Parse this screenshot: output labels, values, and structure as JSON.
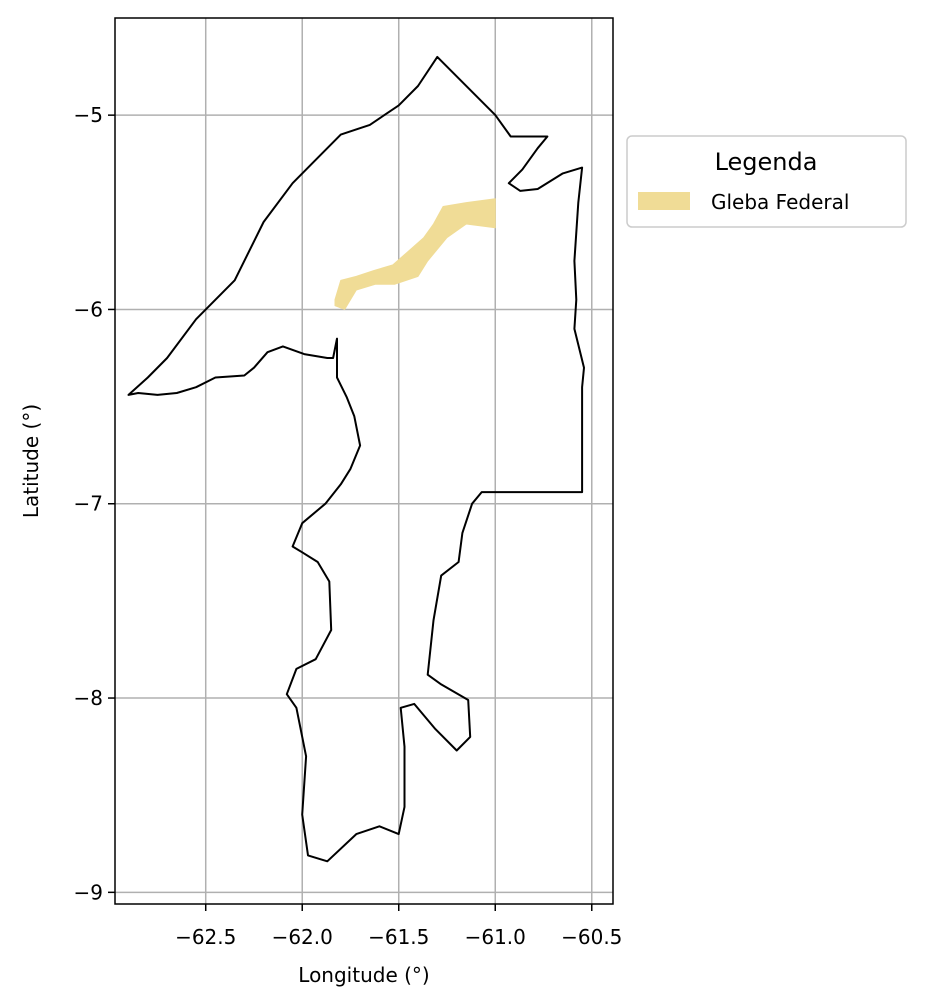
{
  "chart_data": {
    "type": "map",
    "title": "",
    "xlabel": "Longitude (°)",
    "ylabel": "Latitude (°)",
    "xlim": [
      -62.97,
      -60.39
    ],
    "ylim": [
      -9.06,
      -4.5
    ],
    "grid": true,
    "x_ticks": [
      {
        "value": -62.5,
        "label": "−62.5"
      },
      {
        "value": -62.0,
        "label": "−62.0"
      },
      {
        "value": -61.5,
        "label": "−61.5"
      },
      {
        "value": -61.0,
        "label": "−61.0"
      },
      {
        "value": -60.5,
        "label": "−60.5"
      }
    ],
    "y_ticks": [
      {
        "value": -5,
        "label": "−5"
      },
      {
        "value": -6,
        "label": "−6"
      },
      {
        "value": -7,
        "label": "−7"
      },
      {
        "value": -8,
        "label": "−8"
      },
      {
        "value": -9,
        "label": "−9"
      }
    ],
    "legend": {
      "title": "Legenda",
      "position": "outside-right-top",
      "entries": [
        {
          "label": "Gleba Federal",
          "color": "#f0dc96"
        }
      ]
    },
    "boundary": {
      "edge_color": "#000000",
      "fill": "none",
      "coordinates": [
        [
          -61.3,
          -4.7
        ],
        [
          -61.0,
          -5.0
        ],
        [
          -60.92,
          -5.11
        ],
        [
          -60.73,
          -5.11
        ],
        [
          -60.78,
          -5.17
        ],
        [
          -60.86,
          -5.28
        ],
        [
          -60.93,
          -5.35
        ],
        [
          -60.87,
          -5.39
        ],
        [
          -60.78,
          -5.38
        ],
        [
          -60.65,
          -5.3
        ],
        [
          -60.55,
          -5.27
        ],
        [
          -60.57,
          -5.45
        ],
        [
          -60.59,
          -5.75
        ],
        [
          -60.58,
          -5.95
        ],
        [
          -60.59,
          -6.1
        ],
        [
          -60.54,
          -6.3
        ],
        [
          -60.55,
          -6.4
        ],
        [
          -60.55,
          -6.94
        ],
        [
          -61.07,
          -6.94
        ],
        [
          -61.12,
          -7.0
        ],
        [
          -61.17,
          -7.15
        ],
        [
          -61.19,
          -7.3
        ],
        [
          -61.28,
          -7.37
        ],
        [
          -61.32,
          -7.6
        ],
        [
          -61.35,
          -7.88
        ],
        [
          -61.28,
          -7.93
        ],
        [
          -61.14,
          -8.01
        ],
        [
          -61.13,
          -8.2
        ],
        [
          -61.2,
          -8.27
        ],
        [
          -61.31,
          -8.16
        ],
        [
          -61.42,
          -8.03
        ],
        [
          -61.49,
          -8.05
        ],
        [
          -61.47,
          -8.25
        ],
        [
          -61.47,
          -8.56
        ],
        [
          -61.5,
          -8.7
        ],
        [
          -61.6,
          -8.66
        ],
        [
          -61.72,
          -8.7
        ],
        [
          -61.87,
          -8.84
        ],
        [
          -61.97,
          -8.81
        ],
        [
          -62.0,
          -8.6
        ],
        [
          -61.98,
          -8.3
        ],
        [
          -62.03,
          -8.05
        ],
        [
          -62.08,
          -7.98
        ],
        [
          -62.03,
          -7.85
        ],
        [
          -61.93,
          -7.8
        ],
        [
          -61.85,
          -7.65
        ],
        [
          -61.86,
          -7.4
        ],
        [
          -61.92,
          -7.3
        ],
        [
          -62.0,
          -7.25
        ],
        [
          -62.05,
          -7.22
        ],
        [
          -62.0,
          -7.1
        ],
        [
          -61.88,
          -7.0
        ],
        [
          -61.8,
          -6.9
        ],
        [
          -61.75,
          -6.82
        ],
        [
          -61.7,
          -6.7
        ],
        [
          -61.73,
          -6.55
        ],
        [
          -61.77,
          -6.45
        ],
        [
          -61.82,
          -6.35
        ],
        [
          -61.82,
          -6.15
        ],
        [
          -61.84,
          -6.25
        ],
        [
          -61.87,
          -6.25
        ],
        [
          -61.99,
          -6.23
        ],
        [
          -62.1,
          -6.19
        ],
        [
          -62.18,
          -6.22
        ],
        [
          -62.25,
          -6.3
        ],
        [
          -62.3,
          -6.34
        ],
        [
          -62.45,
          -6.35
        ],
        [
          -62.55,
          -6.4
        ],
        [
          -62.65,
          -6.43
        ],
        [
          -62.75,
          -6.44
        ],
        [
          -62.85,
          -6.43
        ],
        [
          -62.9,
          -6.44
        ],
        [
          -62.8,
          -6.35
        ],
        [
          -62.7,
          -6.25
        ],
        [
          -62.55,
          -6.05
        ],
        [
          -62.35,
          -5.85
        ],
        [
          -62.2,
          -5.55
        ],
        [
          -62.05,
          -5.35
        ],
        [
          -61.95,
          -5.25
        ],
        [
          -61.8,
          -5.1
        ],
        [
          -61.65,
          -5.05
        ],
        [
          -61.5,
          -4.95
        ],
        [
          -61.4,
          -4.85
        ],
        [
          -61.3,
          -4.7
        ]
      ]
    },
    "series": [
      {
        "name": "Gleba Federal",
        "color": "#f0dc96",
        "coordinates": [
          [
            -61.83,
            -5.95
          ],
          [
            -61.8,
            -5.85
          ],
          [
            -61.72,
            -5.83
          ],
          [
            -61.63,
            -5.8
          ],
          [
            -61.53,
            -5.77
          ],
          [
            -61.45,
            -5.7
          ],
          [
            -61.37,
            -5.63
          ],
          [
            -61.32,
            -5.56
          ],
          [
            -61.27,
            -5.47
          ],
          [
            -61.15,
            -5.45
          ],
          [
            -61.0,
            -5.43
          ],
          [
            -61.0,
            -5.58
          ],
          [
            -61.15,
            -5.56
          ],
          [
            -61.25,
            -5.63
          ],
          [
            -61.35,
            -5.75
          ],
          [
            -61.4,
            -5.83
          ],
          [
            -61.52,
            -5.87
          ],
          [
            -61.62,
            -5.87
          ],
          [
            -61.72,
            -5.9
          ],
          [
            -61.78,
            -6.0
          ],
          [
            -61.83,
            -5.98
          ]
        ]
      }
    ]
  }
}
